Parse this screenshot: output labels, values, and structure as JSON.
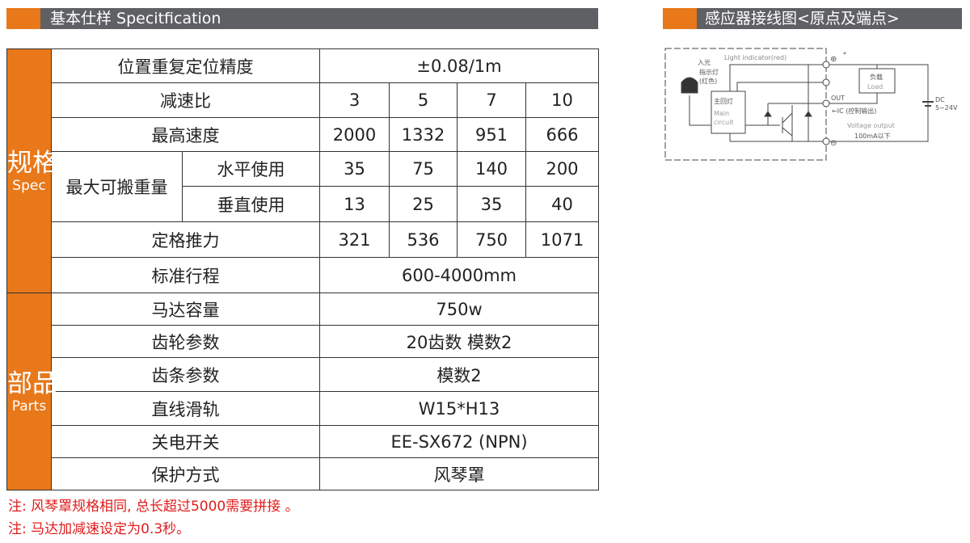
{
  "spec_header": {
    "title": "基本仕样 Specitfication"
  },
  "wiring_header": {
    "title": "感应器接线图<原点及端点>"
  },
  "sections": {
    "spec": {
      "cn": "规格",
      "en": "Spec"
    },
    "parts": {
      "cn": "部品",
      "en": "Parts"
    }
  },
  "spec_rows": {
    "accuracy": {
      "label": "位置重复定位精度",
      "value": "±0.08/1m"
    },
    "ratio": {
      "label": "减速比",
      "values": [
        "3",
        "5",
        "7",
        "10"
      ]
    },
    "speed": {
      "label": "最高速度",
      "values": [
        "2000",
        "1332",
        "951",
        "666"
      ]
    },
    "payload": {
      "label": "最大可搬重量",
      "horizontal": {
        "label": "水平使用",
        "values": [
          "35",
          "75",
          "140",
          "200"
        ]
      },
      "vertical": {
        "label": "垂直使用",
        "values": [
          "13",
          "25",
          "35",
          "40"
        ]
      }
    },
    "thrust": {
      "label": "定格推力",
      "values": [
        "321",
        "536",
        "750",
        "1071"
      ]
    },
    "stroke": {
      "label": "标准行程",
      "value": "600-4000mm"
    }
  },
  "parts_rows": [
    {
      "label": "马达容量",
      "value": "750w"
    },
    {
      "label": "齿轮参数",
      "value": "20齿数  模数2"
    },
    {
      "label": "齿条参数",
      "value": "模数2"
    },
    {
      "label": "直线滑轨",
      "value": "W15*H13"
    },
    {
      "label": "关电开关",
      "value": "EE-SX672 (NPN)"
    },
    {
      "label": "保护方式",
      "value": "风琴罩"
    }
  ],
  "notes": [
    "注: 风琴罩规格相同, 总长超过5000需要拼接 。",
    "注: 马达加减速设定为0.3秒。"
  ],
  "diagram": {
    "light_indicator": "Light indicator(red)",
    "led_label": [
      "入光",
      "指示灯",
      "(红色)"
    ],
    "main_cn": "主回灯",
    "main_en": [
      "Main",
      "circuit"
    ],
    "load_cn": "负载",
    "load_en": "Load",
    "out": "OUT",
    "ic": "←IC (控制输出)",
    "voltage": "Voltage output",
    "current": "100mA以下",
    "dc": "DC",
    "dc_range": "5~24V",
    "star": "*"
  },
  "colors": {
    "orange": "#e8781a",
    "gray": "#5f6064",
    "note_red": "#e01c1c"
  }
}
